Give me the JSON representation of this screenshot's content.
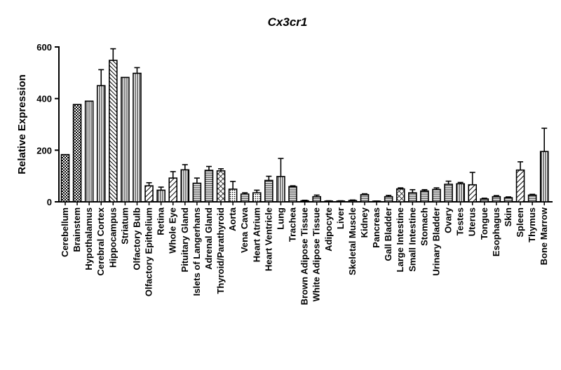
{
  "chart_data": {
    "type": "bar",
    "title": "Cx3cr1",
    "xlabel": "",
    "ylabel": "Relative Expression",
    "ylim": [
      0,
      600
    ],
    "yticks": [
      0,
      200,
      400,
      600
    ],
    "grid": false,
    "legend": "none",
    "bar_color": "#000000",
    "fill_color": "#ffffff",
    "categories": [
      "Cerebellum",
      "Brainstem",
      "Hypothalamus",
      "Cerebral Cortex",
      "Hippocampus",
      "Striatum",
      "Olfactory Bulb",
      "Olfactory Epithelium",
      "Retina",
      "Whole Eye",
      "Pituitary Gland",
      "Islets of Langerhans",
      "Adrenal Gland",
      "Thyroid/Parathyroid",
      "Aorta",
      "Vena Cava",
      "Heart Atrium",
      "Heart Ventricle",
      "Lung",
      "Trachea",
      "Brown Adipose Tissue",
      "White Adipose Tissue",
      "Adipocyte",
      "Liver",
      "Skeletal Muscle",
      "Kidney",
      "Pancreas",
      "Gall Bladder",
      "Large Intestine",
      "Small Intestine",
      "Stomach",
      "Urinary Bladder",
      "Ovary",
      "Testes",
      "Uterus",
      "Tongue",
      "Esophagus",
      "Skin",
      "Spleen",
      "Thymus",
      "Bone Marrow"
    ],
    "values": [
      183,
      377,
      390,
      450,
      548,
      482,
      498,
      62,
      45,
      92,
      124,
      72,
      122,
      120,
      49,
      30,
      35,
      83,
      98,
      59,
      4,
      20,
      3,
      3,
      5,
      28,
      2,
      20,
      50,
      35,
      42,
      48,
      68,
      70,
      66,
      11,
      20,
      16,
      123,
      26,
      195
    ],
    "errors": [
      0,
      0,
      0,
      62,
      45,
      0,
      22,
      12,
      12,
      25,
      20,
      20,
      15,
      8,
      30,
      5,
      10,
      16,
      70,
      3,
      2,
      6,
      1,
      1,
      2,
      3,
      1,
      5,
      4,
      12,
      5,
      6,
      12,
      5,
      48,
      3,
      4,
      3,
      32,
      3,
      90
    ],
    "patterns": [
      "checker",
      "checker",
      "vlines",
      "vlines",
      "hatch-back",
      "vlines",
      "vlines",
      "hatch",
      "vlines",
      "hatch",
      "vlines",
      "hlines",
      "hlines",
      "cross",
      "dots",
      "hlines",
      "dots",
      "hlines",
      "vlines",
      "hlines",
      "hatch",
      "hlines",
      "vlines",
      "hatch",
      "vlines",
      "hlines",
      "dots",
      "hlines",
      "cross",
      "hlines",
      "hlines",
      "hlines",
      "hlines",
      "vlines",
      "hatch",
      "hlines",
      "hlines",
      "hlines",
      "hatch",
      "hlines",
      "vlines"
    ]
  }
}
